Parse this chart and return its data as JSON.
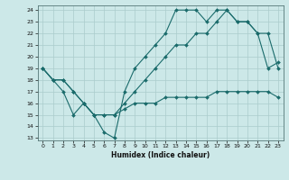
{
  "xlabel": "Humidex (Indice chaleur)",
  "bg_color": "#cce8e8",
  "grid_color": "#aacccc",
  "line_color": "#1a6b6b",
  "xlim": [
    -0.5,
    23.5
  ],
  "ylim": [
    12.8,
    24.4
  ],
  "yticks": [
    13,
    14,
    15,
    16,
    17,
    18,
    19,
    20,
    21,
    22,
    23,
    24
  ],
  "xticks": [
    0,
    1,
    2,
    3,
    4,
    5,
    6,
    7,
    8,
    9,
    10,
    11,
    12,
    13,
    14,
    15,
    16,
    17,
    18,
    19,
    20,
    21,
    22,
    23
  ],
  "line1_x": [
    0,
    1,
    2,
    3,
    4,
    5,
    6,
    7,
    8,
    9,
    10,
    11,
    12,
    13,
    14,
    15,
    16,
    17,
    18,
    19,
    20,
    21,
    22,
    23
  ],
  "line1_y": [
    19,
    18,
    17,
    15,
    16,
    15,
    13.5,
    13,
    17,
    19,
    20,
    21,
    22,
    24,
    24,
    24,
    23,
    24,
    24,
    23,
    23,
    22,
    19,
    19.5
  ],
  "line2_x": [
    0,
    1,
    2,
    3,
    4,
    5,
    6,
    7,
    8,
    9,
    10,
    11,
    12,
    13,
    14,
    15,
    16,
    17,
    18,
    19,
    20,
    21,
    22,
    23
  ],
  "line2_y": [
    19,
    18,
    18,
    17,
    16,
    15,
    15,
    15,
    15.5,
    16,
    16,
    16,
    16.5,
    16.5,
    16.5,
    16.5,
    16.5,
    17,
    17,
    17,
    17,
    17,
    17,
    16.5
  ],
  "line3_x": [
    0,
    1,
    2,
    3,
    4,
    5,
    6,
    7,
    8,
    9,
    10,
    11,
    12,
    13,
    14,
    15,
    16,
    17,
    18,
    19,
    20,
    21,
    22,
    23
  ],
  "line3_y": [
    19,
    18,
    18,
    17,
    16,
    15,
    15,
    15,
    16,
    17,
    18,
    19,
    20,
    21,
    21,
    22,
    22,
    23,
    24,
    23,
    23,
    22,
    22,
    19
  ]
}
